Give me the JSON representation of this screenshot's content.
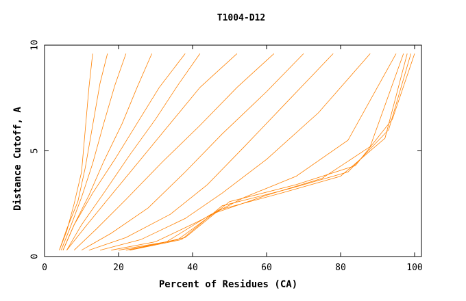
{
  "chart_data": {
    "type": "line",
    "title": "T1004-D12",
    "xlabel": "Percent of Residues (CA)",
    "ylabel": "Distance Cutoff, A",
    "xlim": [
      0,
      100
    ],
    "ylim": [
      0,
      10
    ],
    "xticks": [
      0,
      20,
      40,
      60,
      80,
      100
    ],
    "yticks": [
      0,
      5,
      10
    ],
    "grid": false,
    "legend": "none",
    "series_color": "#ff8000",
    "series": [
      {
        "x": [
          4,
          6,
          8,
          10,
          11,
          12,
          13
        ],
        "y": [
          0.3,
          1.2,
          2.5,
          4.0,
          6.0,
          8.0,
          9.6
        ]
      },
      {
        "x": [
          4,
          6,
          9,
          11,
          13,
          15,
          17
        ],
        "y": [
          0.3,
          1.3,
          2.6,
          4.2,
          6.2,
          8.2,
          9.6
        ]
      },
      {
        "x": [
          4.5,
          7,
          10,
          13,
          16,
          19,
          22
        ],
        "y": [
          0.3,
          1.4,
          2.8,
          4.4,
          6.3,
          8.1,
          9.6
        ]
      },
      {
        "x": [
          5,
          8,
          12,
          16,
          21,
          25,
          29
        ],
        "y": [
          0.3,
          1.5,
          2.9,
          4.5,
          6.3,
          8.0,
          9.6
        ]
      },
      {
        "x": [
          5,
          8,
          13,
          19,
          25,
          31,
          38
        ],
        "y": [
          0.3,
          1.5,
          3.0,
          4.6,
          6.3,
          8.0,
          9.6
        ]
      },
      {
        "x": [
          6,
          10,
          16,
          23,
          30,
          36,
          42
        ],
        "y": [
          0.3,
          1.5,
          3.0,
          4.8,
          6.5,
          8.1,
          9.6
        ]
      },
      {
        "x": [
          6,
          11,
          18,
          26,
          34,
          42,
          52
        ],
        "y": [
          0.3,
          1.4,
          2.9,
          4.6,
          6.3,
          8.0,
          9.6
        ]
      },
      {
        "x": [
          8,
          14,
          22,
          32,
          42,
          52,
          62
        ],
        "y": [
          0.3,
          1.3,
          2.7,
          4.5,
          6.2,
          8.0,
          9.6
        ]
      },
      {
        "x": [
          10,
          18,
          28,
          38,
          48,
          60,
          70
        ],
        "y": [
          0.3,
          1.1,
          2.3,
          4.0,
          5.8,
          7.8,
          9.6
        ]
      },
      {
        "x": [
          12,
          22,
          34,
          44,
          54,
          66,
          78
        ],
        "y": [
          0.3,
          0.9,
          2.0,
          3.4,
          5.2,
          7.4,
          9.6
        ]
      },
      {
        "x": [
          15,
          26,
          38,
          48,
          60,
          74,
          88
        ],
        "y": [
          0.3,
          0.8,
          1.8,
          3.0,
          4.6,
          6.8,
          9.6
        ]
      },
      {
        "x": [
          18,
          30,
          42,
          54,
          68,
          82,
          95
        ],
        "y": [
          0.3,
          0.7,
          1.7,
          2.8,
          3.8,
          5.5,
          9.6
        ]
      },
      {
        "x": [
          20,
          33,
          45,
          60,
          75,
          88,
          97
        ],
        "y": [
          0.3,
          0.7,
          2.0,
          2.9,
          3.7,
          5.2,
          9.6
        ]
      },
      {
        "x": [
          22,
          36,
          47,
          64,
          80,
          92,
          98
        ],
        "y": [
          0.3,
          0.8,
          2.2,
          3.0,
          3.8,
          5.6,
          9.6
        ]
      },
      {
        "x": [
          23,
          37,
          48,
          66,
          82,
          93,
          99
        ],
        "y": [
          0.3,
          0.8,
          2.4,
          3.2,
          4.0,
          6.0,
          9.6
        ]
      },
      {
        "x": [
          23,
          38,
          50,
          68,
          84,
          94,
          100
        ],
        "y": [
          0.3,
          0.9,
          2.6,
          3.4,
          4.3,
          6.5,
          9.6
        ]
      }
    ]
  }
}
